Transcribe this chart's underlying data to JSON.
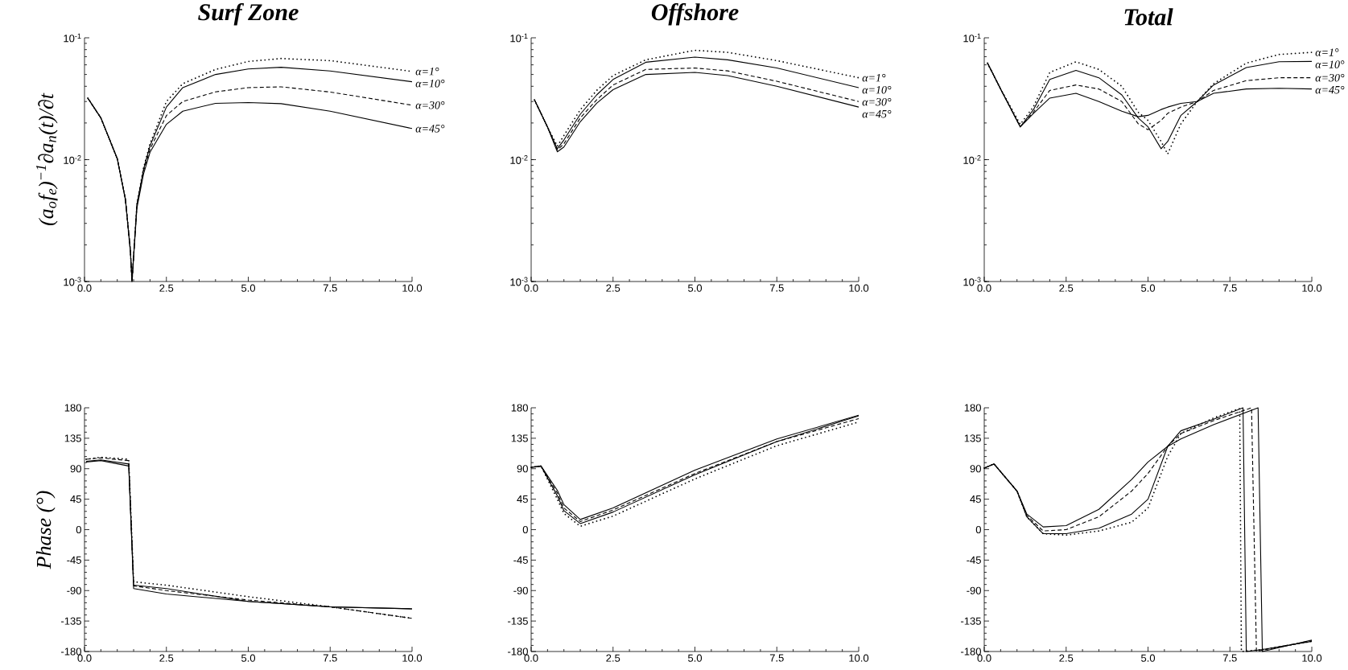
{
  "chart_data": [
    {
      "type": "line",
      "title": "Surf Zone",
      "ylabel": "(a$_{o}$f$_{e}$)$^{−1}$∂a$_{n}$(t)/∂t",
      "log": "y",
      "xlim": [
        0,
        10
      ],
      "ylim": [
        0.001,
        0.1
      ],
      "xticks": [
        {
          "value": 0,
          "label": "0.0"
        },
        {
          "value": 2.5,
          "label": "2.5"
        },
        {
          "value": 5,
          "label": "5.0"
        },
        {
          "value": 7.5,
          "label": "7.5"
        },
        {
          "value": 10,
          "label": "10.0"
        }
      ],
      "yticks": [
        {
          "value": 0.001,
          "label": "10$^{-3}$"
        },
        {
          "value": 0.01,
          "label": "10$^{-2}$"
        },
        {
          "value": 0.1,
          "label": "10$^{-1}$"
        }
      ],
      "x": [
        0.1,
        0.5,
        1.0,
        1.25,
        1.4,
        1.45,
        1.6,
        1.8,
        2.0,
        2.5,
        3.0,
        4.0,
        5.0,
        6.0,
        7.5,
        10.0
      ],
      "series": [
        {
          "name": "α=1°",
          "color": "#000000",
          "line_style": "dotted",
          "values": [
            0.032,
            0.022,
            0.0102,
            0.0047,
            0.0018,
            0.001,
            0.0043,
            0.0085,
            0.0135,
            0.03,
            0.042,
            0.055,
            0.064,
            0.0676,
            0.065,
            0.053
          ]
        },
        {
          "name": "α=10°",
          "color": "#000000",
          "line_style": "solid",
          "values": [
            0.032,
            0.022,
            0.0102,
            0.0047,
            0.0018,
            0.001,
            0.0043,
            0.0083,
            0.013,
            0.027,
            0.039,
            0.05,
            0.0555,
            0.0573,
            0.0534,
            0.0436
          ]
        },
        {
          "name": "α=30°",
          "color": "#000000",
          "line_style": "dashed",
          "values": [
            0.032,
            0.022,
            0.0102,
            0.0047,
            0.0018,
            0.001,
            0.0042,
            0.008,
            0.0122,
            0.023,
            0.03,
            0.036,
            0.039,
            0.0396,
            0.0359,
            0.028
          ]
        },
        {
          "name": "α=45°",
          "color": "#000000",
          "line_style": "solid",
          "values": [
            0.032,
            0.022,
            0.0102,
            0.0047,
            0.0018,
            0.001,
            0.004,
            0.0076,
            0.0115,
            0.0195,
            0.025,
            0.029,
            0.0294,
            0.0288,
            0.025,
            0.018
          ]
        }
      ]
    },
    {
      "type": "line",
      "title": "Offshore",
      "log": "y",
      "xlim": [
        0,
        10
      ],
      "ylim": [
        0.001,
        0.1
      ],
      "xticks": [
        {
          "value": 0,
          "label": "0.0"
        },
        {
          "value": 2.5,
          "label": "2.5"
        },
        {
          "value": 5,
          "label": "5.0"
        },
        {
          "value": 7.5,
          "label": "7.5"
        },
        {
          "value": 10,
          "label": "10.0"
        }
      ],
      "yticks": [
        {
          "value": 0.001,
          "label": "10$^{-3}$"
        },
        {
          "value": 0.01,
          "label": "10$^{-2}$"
        },
        {
          "value": 0.1,
          "label": "10$^{-1}$"
        }
      ],
      "x": [
        0.1,
        0.5,
        0.8,
        1.0,
        1.5,
        2.0,
        2.5,
        3.5,
        5.0,
        6.0,
        7.5,
        10.0
      ],
      "series": [
        {
          "name": "α=1°",
          "color": "#000000",
          "line_style": "dotted",
          "values": [
            0.031,
            0.0185,
            0.0129,
            0.0158,
            0.0257,
            0.037,
            0.049,
            0.066,
            0.079,
            0.076,
            0.065,
            0.047
          ]
        },
        {
          "name": "α=10°",
          "color": "#000000",
          "line_style": "solid",
          "values": [
            0.031,
            0.0185,
            0.0123,
            0.0145,
            0.0236,
            0.034,
            0.0455,
            0.063,
            0.0695,
            0.066,
            0.0565,
            0.039
          ]
        },
        {
          "name": "α=30°",
          "color": "#000000",
          "line_style": "dashed",
          "values": [
            0.031,
            0.0185,
            0.012,
            0.0135,
            0.022,
            0.031,
            0.041,
            0.055,
            0.0565,
            0.0535,
            0.044,
            0.03
          ]
        },
        {
          "name": "α=45°",
          "color": "#000000",
          "line_style": "solid",
          "values": [
            0.031,
            0.0185,
            0.0116,
            0.0127,
            0.0205,
            0.029,
            0.0375,
            0.05,
            0.052,
            0.049,
            0.04,
            0.027
          ]
        }
      ]
    },
    {
      "type": "line",
      "title": "Total",
      "log": "y",
      "xlim": [
        0,
        10
      ],
      "ylim": [
        0.001,
        0.1
      ],
      "xticks": [
        {
          "value": 0,
          "label": "0.0"
        },
        {
          "value": 2.5,
          "label": "2.5"
        },
        {
          "value": 5,
          "label": "5.0"
        },
        {
          "value": 7.5,
          "label": "7.5"
        },
        {
          "value": 10,
          "label": "10.0"
        }
      ],
      "yticks": [
        {
          "value": 0.001,
          "label": "10$^{-3}$"
        },
        {
          "value": 0.01,
          "label": "10$^{-2}$"
        },
        {
          "value": 0.1,
          "label": "10$^{-1}$"
        }
      ],
      "x": [
        0.1,
        0.5,
        1.1,
        1.5,
        2.0,
        2.8,
        3.5,
        4.2,
        4.7,
        5.0,
        5.4,
        5.6,
        6.0,
        6.5,
        7.0,
        8.0,
        9.0,
        10.0
      ],
      "series": [
        {
          "name": "α=1°",
          "color": "#000000",
          "line_style": "dotted",
          "values": [
            0.062,
            0.038,
            0.0195,
            0.0272,
            0.052,
            0.0636,
            0.055,
            0.04,
            0.0245,
            0.021,
            0.0141,
            0.0111,
            0.0196,
            0.03,
            0.042,
            0.062,
            0.073,
            0.076
          ]
        },
        {
          "name": "α=10°",
          "color": "#000000",
          "line_style": "solid",
          "values": [
            0.062,
            0.038,
            0.0186,
            0.0257,
            0.0456,
            0.054,
            0.047,
            0.034,
            0.022,
            0.0186,
            0.0123,
            0.0141,
            0.023,
            0.03,
            0.041,
            0.057,
            0.0636,
            0.064
          ]
        },
        {
          "name": "α=30°",
          "color": "#000000",
          "line_style": "dashed",
          "values": [
            0.062,
            0.038,
            0.0186,
            0.0245,
            0.037,
            0.041,
            0.038,
            0.03,
            0.0197,
            0.0176,
            0.021,
            0.024,
            0.027,
            0.03,
            0.037,
            0.0445,
            0.047,
            0.047
          ]
        },
        {
          "name": "α=45°",
          "color": "#000000",
          "line_style": "solid",
          "values": [
            0.062,
            0.038,
            0.0186,
            0.0239,
            0.032,
            0.035,
            0.03,
            0.025,
            0.0225,
            0.0231,
            0.0258,
            0.027,
            0.029,
            0.03,
            0.035,
            0.038,
            0.0385,
            0.038
          ]
        }
      ]
    },
    {
      "type": "line",
      "ylabel": "Phase (°)",
      "xlim": [
        0,
        10
      ],
      "ylim": [
        -180,
        180
      ],
      "xticks": [
        {
          "value": 0,
          "label": "0.0"
        },
        {
          "value": 2.5,
          "label": "2.5"
        },
        {
          "value": 5,
          "label": "5.0"
        },
        {
          "value": 7.5,
          "label": "7.5"
        },
        {
          "value": 10,
          "label": "10.0"
        }
      ],
      "yticks": [
        -180,
        -135,
        -90,
        -45,
        0,
        45,
        90,
        135,
        180
      ],
      "x": [
        0.05,
        0.5,
        1.35,
        1.5,
        2.5,
        5.0,
        7.5,
        10.0
      ],
      "series": [
        {
          "color": "#000000",
          "line_style": "dotted",
          "values": [
            104,
            107,
            104,
            -77,
            -82,
            -99,
            -114,
            -131
          ]
        },
        {
          "color": "#000000",
          "line_style": "solid",
          "values": [
            101,
            103,
            97,
            -82,
            -87,
            -106,
            -114,
            -117
          ]
        },
        {
          "color": "#000000",
          "line_style": "dashed",
          "values": [
            104,
            106,
            102,
            -83,
            -90,
            -104,
            -114,
            -131
          ]
        },
        {
          "color": "#000000",
          "line_style": "solid",
          "values": [
            100,
            102,
            94,
            -87,
            -95,
            -106,
            -114,
            -117
          ]
        }
      ]
    },
    {
      "type": "line",
      "xlim": [
        0,
        10
      ],
      "ylim": [
        -180,
        180
      ],
      "xticks": [
        {
          "value": 0,
          "label": "0.0"
        },
        {
          "value": 2.5,
          "label": "2.5"
        },
        {
          "value": 5,
          "label": "5.0"
        },
        {
          "value": 7.5,
          "label": "7.5"
        },
        {
          "value": 10,
          "label": "10.0"
        }
      ],
      "yticks": [
        -180,
        -135,
        -90,
        -45,
        0,
        45,
        90,
        135,
        180
      ],
      "x": [
        0,
        0.3,
        0.8,
        1.0,
        1.5,
        2.5,
        5.0,
        7.5,
        10.0
      ],
      "series": [
        {
          "color": "#000000",
          "line_style": "dotted",
          "values": [
            92,
            94,
            45,
            24,
            5,
            20,
            75,
            124,
            159
          ]
        },
        {
          "color": "#000000",
          "line_style": "solid",
          "values": [
            92,
            94,
            50,
            28,
            9,
            26,
            81,
            130,
            168
          ]
        },
        {
          "color": "#000000",
          "line_style": "dashed",
          "values": [
            92,
            94,
            54,
            32,
            12,
            29,
            83,
            130,
            164
          ]
        },
        {
          "color": "#000000",
          "line_style": "solid",
          "values": [
            92,
            94,
            58,
            37,
            15,
            32,
            88,
            134,
            169
          ]
        }
      ]
    },
    {
      "type": "line",
      "xlim": [
        0,
        10
      ],
      "ylim": [
        -180,
        180
      ],
      "xticks": [
        {
          "value": 0,
          "label": "0.0"
        },
        {
          "value": 2.5,
          "label": "2.5"
        },
        {
          "value": 5,
          "label": "5.0"
        },
        {
          "value": 7.5,
          "label": "7.5"
        },
        {
          "value": 10,
          "label": "10.0"
        }
      ],
      "yticks": [
        -180,
        -135,
        -90,
        -45,
        0,
        45,
        90,
        135,
        180
      ],
      "series": [
        {
          "color": "#000000",
          "line_style": "dotted",
          "x": [
            0,
            0.3,
            1.0,
            1.3,
            1.8,
            2.5,
            3.5,
            4.5,
            5.0,
            5.6,
            6.0,
            7.0,
            7.8,
            7.85,
            8.5,
            10.0
          ],
          "values": [
            91,
            97,
            57,
            19,
            -6,
            -8,
            -2,
            11,
            32,
            108,
            142,
            165,
            179,
            -180,
            -177,
            -165
          ]
        },
        {
          "color": "#000000",
          "line_style": "solid",
          "x": [
            0,
            0.3,
            1.0,
            1.3,
            1.8,
            2.5,
            3.5,
            4.5,
            5.0,
            5.6,
            6.0,
            7.0,
            7.9,
            8.0,
            8.5,
            10.0
          ],
          "values": [
            91,
            97,
            57,
            19,
            -6,
            -6,
            2,
            23,
            45,
            123,
            146,
            163,
            180,
            -180,
            -177,
            -165
          ]
        },
        {
          "color": "#000000",
          "line_style": "dashed",
          "x": [
            0,
            0.3,
            1.0,
            1.3,
            1.8,
            2.5,
            3.5,
            4.5,
            5.0,
            5.6,
            6.0,
            7.0,
            8.16,
            8.31,
            8.6,
            10.0
          ],
          "values": [
            91,
            97,
            57,
            21,
            -2,
            0,
            19,
            57,
            83,
            123,
            142,
            161,
            180,
            -180,
            -177,
            -164
          ]
        },
        {
          "color": "#000000",
          "line_style": "solid",
          "x": [
            0,
            0.3,
            1.0,
            1.3,
            1.8,
            2.5,
            3.5,
            4.5,
            5.0,
            5.6,
            6.0,
            7.0,
            8.36,
            8.49,
            10.0
          ],
          "values": [
            91,
            97,
            57,
            23,
            4,
            6,
            30,
            74,
            100,
            123,
            134,
            155,
            180,
            -180,
            -163
          ]
        }
      ]
    }
  ]
}
